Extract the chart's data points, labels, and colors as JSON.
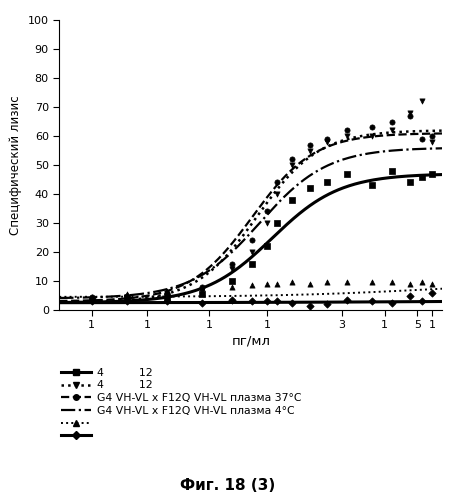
{
  "title": "",
  "ylabel": "Специфический лизис",
  "xlabel": "пг/мл",
  "caption": "Фиг. 18 (3)",
  "ylim": [
    0,
    100
  ],
  "yticks": [
    0,
    10,
    20,
    30,
    40,
    50,
    60,
    70,
    80,
    90,
    100
  ],
  "background_color": "#ffffff",
  "series": [
    {
      "label": "4          12",
      "line_style": "-",
      "marker": "s",
      "lw": 2.2,
      "baseline": 2.5,
      "plateau": 47.0,
      "ec50_log": 0.2,
      "hill": 3.2,
      "scatter_x": [
        -0.52,
        -0.38,
        -0.22,
        -0.08,
        0.04,
        0.12,
        0.18,
        0.22,
        0.28,
        0.35,
        0.42,
        0.5,
        0.6,
        0.68,
        0.75,
        0.8,
        0.84
      ],
      "scatter_y": [
        3.5,
        4.0,
        4.5,
        5.5,
        10.0,
        16.0,
        22.0,
        30.0,
        38.0,
        42.0,
        44.0,
        47.0,
        43.0,
        48.0,
        44.0,
        46.0,
        47.0
      ]
    },
    {
      "label": "4          12",
      "line_style": ":",
      "marker": "v",
      "lw": 1.8,
      "baseline": 2.5,
      "plateau": 62.0,
      "ec50_log": 0.14,
      "hill": 3.5,
      "scatter_x": [
        -0.52,
        -0.38,
        -0.22,
        -0.08,
        0.04,
        0.12,
        0.18,
        0.22,
        0.28,
        0.35,
        0.42,
        0.5,
        0.6,
        0.68,
        0.75,
        0.8,
        0.84
      ],
      "scatter_y": [
        3.0,
        3.5,
        5.0,
        7.0,
        14.0,
        20.0,
        30.0,
        40.0,
        50.0,
        55.0,
        58.0,
        60.0,
        60.0,
        62.0,
        68.0,
        72.0,
        58.0
      ]
    },
    {
      "label": "G4 VH-VL x F12Q VH-VL плазма 37°C",
      "line_style": "--",
      "marker": "o",
      "lw": 1.6,
      "baseline": 3.0,
      "plateau": 61.0,
      "ec50_log": 0.12,
      "hill": 3.5,
      "scatter_x": [
        -0.52,
        -0.38,
        -0.22,
        -0.08,
        0.04,
        0.12,
        0.18,
        0.22,
        0.28,
        0.35,
        0.42,
        0.5,
        0.6,
        0.68,
        0.75,
        0.8,
        0.84
      ],
      "scatter_y": [
        4.5,
        5.0,
        6.0,
        8.0,
        16.0,
        24.0,
        34.0,
        44.0,
        52.0,
        57.0,
        59.0,
        62.0,
        63.0,
        65.0,
        67.0,
        59.0,
        60.0
      ]
    },
    {
      "label": "G4 VH-VL x F12Q VH-VL плазма 4°C",
      "line_style": "-.",
      "marker": null,
      "lw": 1.6,
      "baseline": 4.0,
      "plateau": 56.0,
      "ec50_log": 0.15,
      "hill": 3.2,
      "scatter_x": [],
      "scatter_y": []
    },
    {
      "label": "",
      "line_style": ":",
      "marker": "^",
      "lw": 1.4,
      "baseline": 4.5,
      "plateau": 9.5,
      "ec50_log": 0.8,
      "hill": 1.5,
      "scatter_x": [
        -0.52,
        -0.38,
        -0.22,
        -0.08,
        0.04,
        0.12,
        0.18,
        0.22,
        0.28,
        0.35,
        0.42,
        0.5,
        0.6,
        0.68,
        0.75,
        0.8,
        0.84
      ],
      "scatter_y": [
        4.5,
        5.5,
        6.5,
        7.5,
        8.0,
        8.5,
        9.0,
        9.0,
        9.5,
        9.0,
        9.5,
        9.5,
        9.5,
        9.5,
        9.0,
        9.5,
        9.0
      ]
    },
    {
      "label": "",
      "line_style": "-",
      "marker": "D",
      "lw": 2.2,
      "baseline": 2.5,
      "plateau": 3.5,
      "ec50_log": 1.0,
      "hill": 1.0,
      "scatter_x": [
        -0.52,
        -0.38,
        -0.22,
        -0.08,
        0.04,
        0.12,
        0.18,
        0.22,
        0.28,
        0.35,
        0.42,
        0.5,
        0.6,
        0.68,
        0.75,
        0.8,
        0.84
      ],
      "scatter_y": [
        3.0,
        3.0,
        3.0,
        2.5,
        3.5,
        3.0,
        3.0,
        3.0,
        2.5,
        1.5,
        2.0,
        3.5,
        3.0,
        2.5,
        5.0,
        3.0,
        6.0
      ]
    }
  ],
  "xtick_positions": [
    -0.52,
    -0.3,
    -0.05,
    0.18,
    0.48,
    0.65,
    0.78,
    0.84
  ],
  "xtick_labels": [
    "1",
    "1",
    "1",
    "1",
    "3",
    "1",
    "5",
    "1"
  ],
  "xlim": [
    -0.65,
    0.88
  ]
}
